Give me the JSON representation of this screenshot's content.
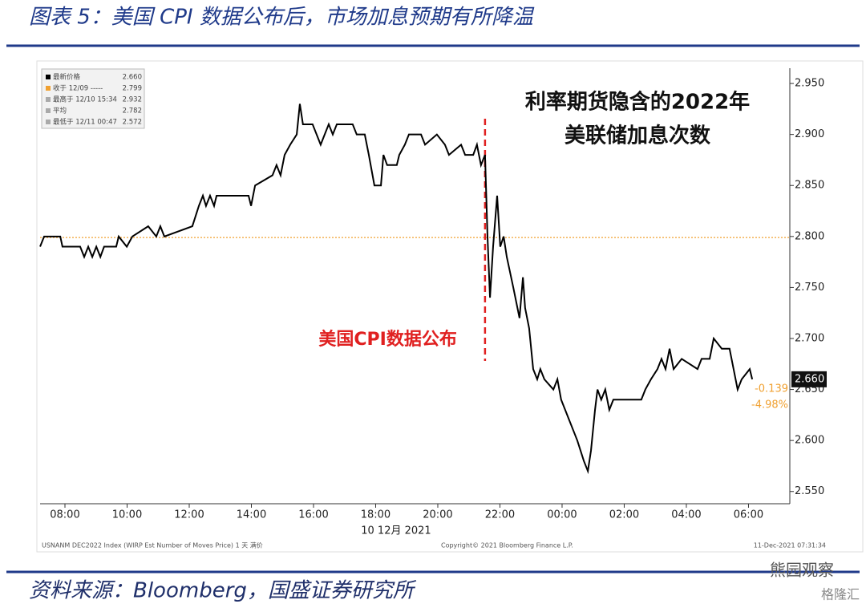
{
  "chart_data": {
    "type": "line",
    "title": "图表 5：美国 CPI 数据公布后，市场加息预期有所降温",
    "source": "资料来源：Bloomberg，国盛证券研究所",
    "watermarks": [
      "熊园观察",
      "格隆汇"
    ],
    "annotations": [
      "利率期货隐含的2022年",
      "美联储加息次数"
    ],
    "event": {
      "x": 21.52,
      "label": "美国CPI数据公布",
      "color": "#e02020"
    },
    "date_label": "10 12月 2021",
    "footer": [
      "USNANM DEC2022 Index (WIRP Est Number of Moves Price) 1 天 满价",
      "Copyright© 2021 Bloomberg Finance L.P.",
      "11-Dec-2021 07:31:34"
    ],
    "legend": [
      {
        "name": "最新价格",
        "value": {
          "value": 2.66,
          "label": "2.660"
        }
      },
      {
        "name": "收于 12/09 -----",
        "value": {
          "value": 2.799,
          "label": "2.799"
        }
      },
      {
        "name": "最高于 12/10 15:34",
        "value": {
          "value": 2.932,
          "label": "2.932"
        }
      },
      {
        "name": "平均",
        "value": {
          "value": 2.782,
          "label": "2.782"
        }
      },
      {
        "name": "最低于 12/11 00:47",
        "value": {
          "value": 2.572,
          "label": "2.572"
        }
      }
    ],
    "last_price": {
      "value": 2.66,
      "label": "2.660"
    },
    "change": "-0.139",
    "change_pct": "-4.98%",
    "reference_color": "#f0a030",
    "color": "#000000",
    "x": [
      7.2,
      7.33,
      7.85,
      7.92,
      8.49,
      8.62,
      8.75,
      8.88,
      9.01,
      9.14,
      9.26,
      9.65,
      9.73,
      9.99,
      10.17,
      10.68,
      10.94,
      11.07,
      11.2,
      12.1,
      12.31,
      12.44,
      12.54,
      12.67,
      12.8,
      12.88,
      13.91,
      13.99,
      14.12,
      14.68,
      14.81,
      14.94,
      15.07,
      15.25,
      15.46,
      15.56,
      15.66,
      15.97,
      16.23,
      16.36,
      16.49,
      16.62,
      16.75,
      17.26,
      17.39,
      17.65,
      17.78,
      17.96,
      18.17,
      18.25,
      18.37,
      18.68,
      18.76,
      18.94,
      19.07,
      19.46,
      19.59,
      19.97,
      20.23,
      20.36,
      20.75,
      20.88,
      21.14,
      21.26,
      21.39,
      21.52,
      21.6,
      21.68,
      21.78,
      21.91,
      22.01,
      22.12,
      22.22,
      22.43,
      22.63,
      22.74,
      22.81,
      22.94,
      23.07,
      23.2,
      23.3,
      23.43,
      23.72,
      23.85,
      23.97,
      24.1,
      24.23,
      24.36,
      24.49,
      24.7,
      24.83,
      24.93,
      25.06,
      25.14,
      25.26,
      25.39,
      25.52,
      25.65,
      26.55,
      26.68,
      26.86,
      27.07,
      27.2,
      27.33,
      27.46,
      27.59,
      27.85,
      28.36,
      28.49,
      28.75,
      28.88,
      29.14,
      29.39,
      29.65,
      29.78,
      30.04,
      30.12
    ],
    "values": [
      2.79,
      2.8,
      2.8,
      2.79,
      2.79,
      2.78,
      2.79,
      2.78,
      2.79,
      2.78,
      2.79,
      2.79,
      2.8,
      2.79,
      2.8,
      2.81,
      2.8,
      2.81,
      2.8,
      2.81,
      2.83,
      2.84,
      2.83,
      2.84,
      2.83,
      2.84,
      2.84,
      2.83,
      2.85,
      2.86,
      2.87,
      2.86,
      2.88,
      2.89,
      2.9,
      2.93,
      2.91,
      2.91,
      2.89,
      2.9,
      2.91,
      2.9,
      2.91,
      2.91,
      2.9,
      2.9,
      2.88,
      2.85,
      2.85,
      2.88,
      2.87,
      2.87,
      2.88,
      2.89,
      2.9,
      2.9,
      2.89,
      2.9,
      2.89,
      2.88,
      2.89,
      2.88,
      2.88,
      2.89,
      2.87,
      2.88,
      2.8,
      2.74,
      2.79,
      2.84,
      2.79,
      2.8,
      2.78,
      2.75,
      2.72,
      2.76,
      2.73,
      2.71,
      2.67,
      2.66,
      2.67,
      2.66,
      2.65,
      2.66,
      2.64,
      2.63,
      2.62,
      2.61,
      2.6,
      2.58,
      2.57,
      2.59,
      2.63,
      2.65,
      2.64,
      2.65,
      2.63,
      2.64,
      2.64,
      2.65,
      2.66,
      2.67,
      2.68,
      2.67,
      2.69,
      2.67,
      2.68,
      2.67,
      2.68,
      2.68,
      2.7,
      2.69,
      2.69,
      2.65,
      2.66,
      2.67,
      2.66
    ],
    "xlim": [
      7.2,
      31.33
    ],
    "xticks": [
      {
        "value": 8,
        "label": "08:00"
      },
      {
        "value": 10,
        "label": "10:00"
      },
      {
        "value": 12,
        "label": "12:00"
      },
      {
        "value": 14,
        "label": "14:00"
      },
      {
        "value": 16,
        "label": "16:00"
      },
      {
        "value": 18,
        "label": "18:00"
      },
      {
        "value": 20,
        "label": "20:00"
      },
      {
        "value": 22,
        "label": "22:00"
      },
      {
        "value": 24,
        "label": "00:00"
      },
      {
        "value": 26,
        "label": "02:00"
      },
      {
        "value": 28,
        "label": "04:00"
      },
      {
        "value": 30,
        "label": "06:00"
      }
    ],
    "ylim": [
      2.538,
      2.965
    ],
    "yticks": [
      {
        "value": 2.55,
        "label": "2.550"
      },
      {
        "value": 2.6,
        "label": "2.600"
      },
      {
        "value": 2.65,
        "label": "2.650"
      },
      {
        "value": 2.7,
        "label": "2.700"
      },
      {
        "value": 2.75,
        "label": "2.750"
      },
      {
        "value": 2.8,
        "label": "2.800"
      },
      {
        "value": 2.85,
        "label": "2.850"
      },
      {
        "value": 2.9,
        "label": "2.900"
      },
      {
        "value": 2.95,
        "label": "2.950"
      }
    ]
  }
}
